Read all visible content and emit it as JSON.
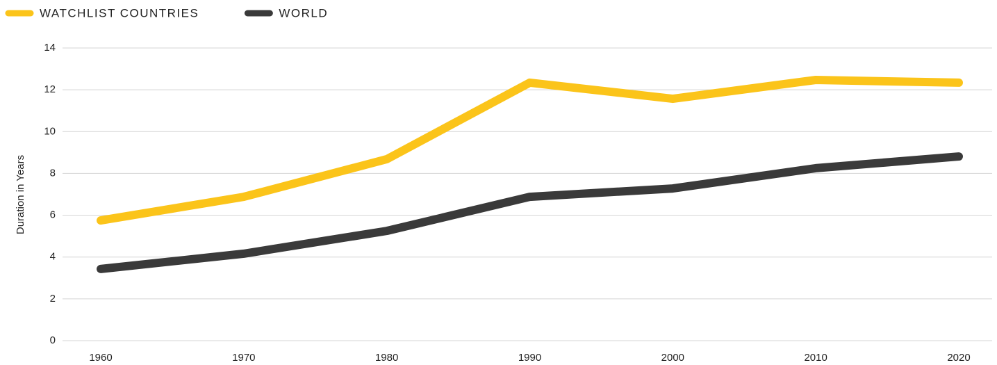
{
  "chart_data": {
    "type": "line",
    "categories": [
      "1960",
      "1970",
      "1980",
      "1990",
      "2000",
      "2010",
      "2020"
    ],
    "y_label": "Duration in Years",
    "series": [
      {
        "name": "WATCHLIST COUNTRIES",
        "color": "#fbc41a",
        "values": [
          5.75,
          6.88,
          8.68,
          12.34,
          11.57,
          12.47,
          12.34
        ]
      },
      {
        "name": "WORLD",
        "color": "#3a3a3a",
        "values": [
          3.43,
          4.16,
          5.25,
          6.88,
          7.28,
          8.25,
          8.81
        ]
      }
    ],
    "ylim": [
      0,
      14
    ],
    "yticks": [
      0,
      2,
      4,
      6,
      8,
      10,
      12,
      14
    ],
    "grid": true,
    "legend": "top"
  }
}
